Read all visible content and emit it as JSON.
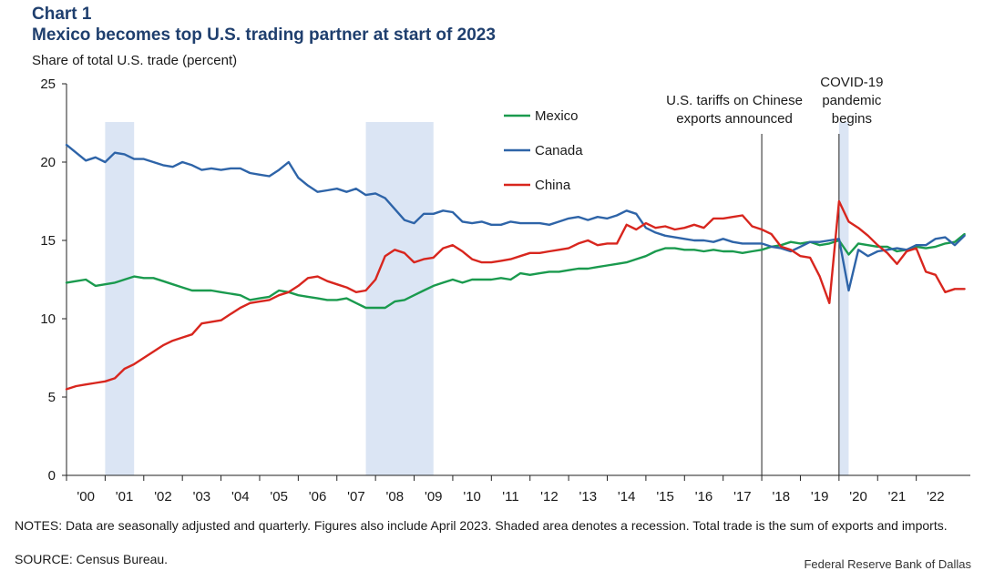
{
  "header": {
    "chart_number": "Chart 1",
    "title": "Mexico becomes top U.S. trading partner at start of 2023",
    "ylabel": "Share of total U.S. trade (percent)"
  },
  "footer": {
    "notes": "NOTES: Data are seasonally adjusted and quarterly. Figures also include April 2023. Shaded area denotes a recession. Total trade is the sum of exports and imports.",
    "source": "SOURCE: Census Bureau.",
    "credit": "Federal Reserve Bank of Dallas"
  },
  "colors": {
    "mexico": "#1a9a4e",
    "canada": "#2e64a8",
    "china": "#d8261e",
    "recession": "#dbe5f4"
  },
  "chart_data": {
    "type": "line",
    "ylim": [
      0,
      25
    ],
    "xlim": [
      2000,
      2023.4
    ],
    "yticks": [
      0,
      5,
      10,
      15,
      20,
      25
    ],
    "xtick_labels": [
      "'00",
      "'01",
      "'02",
      "'03",
      "'04",
      "'05",
      "'06",
      "'07",
      "'08",
      "'09",
      "'10",
      "'11",
      "'12",
      "'13",
      "'14",
      "'15",
      "'16",
      "'17",
      "'18",
      "'19",
      "'20",
      "'21",
      "'22"
    ],
    "legend_placement": "upper-center",
    "grid": false,
    "recessions": [
      [
        2001.0,
        2001.75
      ],
      [
        2007.75,
        2009.5
      ],
      [
        2020.0,
        2020.25
      ]
    ],
    "annotations": [
      {
        "x": 2018.0,
        "lines": [
          "U.S. tariffs on Chinese",
          "exports announced"
        ]
      },
      {
        "x": 2020.0,
        "lines": [
          "COVID-19",
          "pandemic",
          "begins"
        ]
      }
    ],
    "x": [
      2000.0,
      2000.25,
      2000.5,
      2000.75,
      2001.0,
      2001.25,
      2001.5,
      2001.75,
      2002.0,
      2002.25,
      2002.5,
      2002.75,
      2003.0,
      2003.25,
      2003.5,
      2003.75,
      2004.0,
      2004.25,
      2004.5,
      2004.75,
      2005.0,
      2005.25,
      2005.5,
      2005.75,
      2006.0,
      2006.25,
      2006.5,
      2006.75,
      2007.0,
      2007.25,
      2007.5,
      2007.75,
      2008.0,
      2008.25,
      2008.5,
      2008.75,
      2009.0,
      2009.25,
      2009.5,
      2009.75,
      2010.0,
      2010.25,
      2010.5,
      2010.75,
      2011.0,
      2011.25,
      2011.5,
      2011.75,
      2012.0,
      2012.25,
      2012.5,
      2012.75,
      2013.0,
      2013.25,
      2013.5,
      2013.75,
      2014.0,
      2014.25,
      2014.5,
      2014.75,
      2015.0,
      2015.25,
      2015.5,
      2015.75,
      2016.0,
      2016.25,
      2016.5,
      2016.75,
      2017.0,
      2017.25,
      2017.5,
      2017.75,
      2018.0,
      2018.25,
      2018.5,
      2018.75,
      2019.0,
      2019.25,
      2019.5,
      2019.75,
      2020.0,
      2020.25,
      2020.5,
      2020.75,
      2021.0,
      2021.25,
      2021.5,
      2021.75,
      2022.0,
      2022.25,
      2022.5,
      2022.75,
      2023.0,
      2023.25
    ],
    "series": [
      {
        "name": "Mexico",
        "color": "#1a9a4e",
        "values": [
          12.3,
          12.4,
          12.5,
          12.1,
          12.2,
          12.3,
          12.5,
          12.7,
          12.6,
          12.6,
          12.4,
          12.2,
          12.0,
          11.8,
          11.8,
          11.8,
          11.7,
          11.6,
          11.5,
          11.2,
          11.3,
          11.4,
          11.8,
          11.7,
          11.5,
          11.4,
          11.3,
          11.2,
          11.2,
          11.3,
          11.0,
          10.7,
          10.7,
          10.7,
          11.1,
          11.2,
          11.5,
          11.8,
          12.1,
          12.3,
          12.5,
          12.3,
          12.5,
          12.5,
          12.5,
          12.6,
          12.5,
          12.9,
          12.8,
          12.9,
          13.0,
          13.0,
          13.1,
          13.2,
          13.2,
          13.3,
          13.4,
          13.5,
          13.6,
          13.8,
          14.0,
          14.3,
          14.5,
          14.5,
          14.4,
          14.4,
          14.3,
          14.4,
          14.3,
          14.3,
          14.2,
          14.3,
          14.4,
          14.6,
          14.7,
          14.9,
          14.8,
          14.9,
          14.7,
          14.8,
          15.0,
          14.1,
          14.8,
          14.7,
          14.6,
          14.6,
          14.3,
          14.4,
          14.6,
          14.5,
          14.6,
          14.8,
          14.9,
          15.4
        ]
      },
      {
        "name": "Canada",
        "color": "#2e64a8",
        "values": [
          21.1,
          20.6,
          20.1,
          20.3,
          20.0,
          20.6,
          20.5,
          20.2,
          20.2,
          20.0,
          19.8,
          19.7,
          20.0,
          19.8,
          19.5,
          19.6,
          19.5,
          19.6,
          19.6,
          19.3,
          19.2,
          19.1,
          19.5,
          20.0,
          19.0,
          18.5,
          18.1,
          18.2,
          18.3,
          18.1,
          18.3,
          17.9,
          18.0,
          17.7,
          17.0,
          16.3,
          16.1,
          16.7,
          16.7,
          16.9,
          16.8,
          16.2,
          16.1,
          16.2,
          16.0,
          16.0,
          16.2,
          16.1,
          16.1,
          16.1,
          16.0,
          16.2,
          16.4,
          16.5,
          16.3,
          16.5,
          16.4,
          16.6,
          16.9,
          16.7,
          15.8,
          15.5,
          15.3,
          15.2,
          15.1,
          15.0,
          15.0,
          14.9,
          15.1,
          14.9,
          14.8,
          14.8,
          14.8,
          14.6,
          14.5,
          14.3,
          14.6,
          14.9,
          14.9,
          15.0,
          15.1,
          11.8,
          14.4,
          14.0,
          14.3,
          14.4,
          14.5,
          14.4,
          14.7,
          14.7,
          15.1,
          15.2,
          14.7,
          15.3
        ]
      },
      {
        "name": "China",
        "color": "#d8261e",
        "values": [
          5.5,
          5.7,
          5.8,
          5.9,
          6.0,
          6.2,
          6.8,
          7.1,
          7.5,
          7.9,
          8.3,
          8.6,
          8.8,
          9.0,
          9.7,
          9.8,
          9.9,
          10.3,
          10.7,
          11.0,
          11.1,
          11.2,
          11.5,
          11.7,
          12.1,
          12.6,
          12.7,
          12.4,
          12.2,
          12.0,
          11.7,
          11.8,
          12.5,
          14.0,
          14.4,
          14.2,
          13.6,
          13.8,
          13.9,
          14.5,
          14.7,
          14.3,
          13.8,
          13.6,
          13.6,
          13.7,
          13.8,
          14.0,
          14.2,
          14.2,
          14.3,
          14.4,
          14.5,
          14.8,
          15.0,
          14.7,
          14.8,
          14.8,
          16.0,
          15.7,
          16.1,
          15.8,
          15.9,
          15.7,
          15.8,
          16.0,
          15.8,
          16.4,
          16.4,
          16.5,
          16.6,
          15.9,
          15.7,
          15.4,
          14.6,
          14.4,
          14.0,
          13.9,
          12.7,
          11.0,
          17.5,
          16.2,
          15.8,
          15.3,
          14.7,
          14.2,
          13.5,
          14.3,
          14.5,
          13.0,
          12.8,
          11.7,
          11.9,
          11.9
        ]
      }
    ]
  }
}
